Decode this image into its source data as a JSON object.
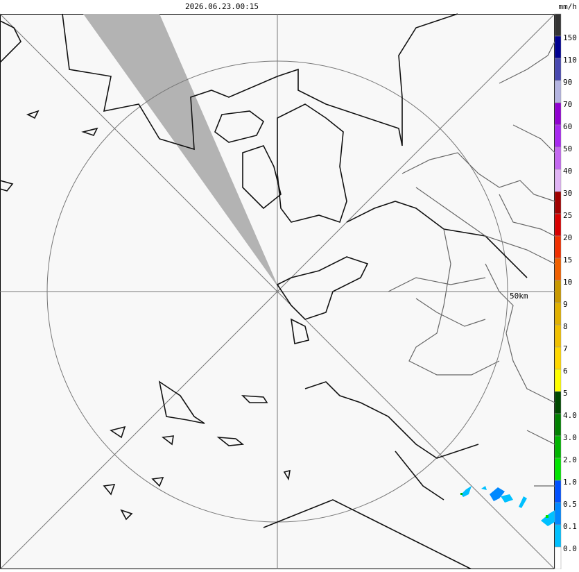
{
  "header": {
    "timestamp": "2026.06.23.00:15"
  },
  "map": {
    "range_label": "50km"
  },
  "legend": {
    "unit": "mm/h",
    "labels": [
      "150",
      "110",
      "90",
      "70",
      "60",
      "50",
      "40",
      "30",
      "25",
      "20",
      "15",
      "10",
      "9",
      "8",
      "7",
      "6",
      "5",
      "4.0",
      "3.0",
      "2.0",
      "1.0",
      "0.5",
      "0.1",
      "0.0"
    ],
    "colors": [
      "#333333",
      "#000090",
      "#4848b0",
      "#b4b4e0",
      "#9000d0",
      "#a828f0",
      "#c468f0",
      "#e0b4f4",
      "#a00000",
      "#d80000",
      "#f03000",
      "#f06000",
      "#c89800",
      "#e0b000",
      "#f0c000",
      "#ffd800",
      "#ffff00",
      "#004800",
      "#008000",
      "#00b400",
      "#00e400",
      "#0050ff",
      "#0088ff",
      "#00c0ff",
      "#ffffff"
    ]
  }
}
